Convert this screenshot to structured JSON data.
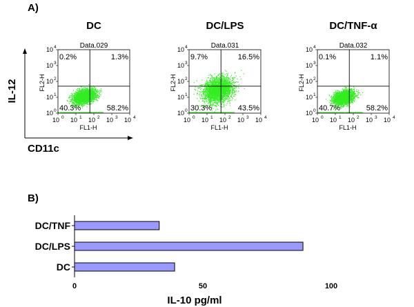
{
  "figure": {
    "panel_a_label": "A)",
    "panel_b_label": "B)",
    "y_arrow_label": "IL-12",
    "x_arrow_label": "CD11c"
  },
  "chart_data": [
    {
      "type": "scatter",
      "title": "DC",
      "file": "Data.029",
      "xlabel": "FL1-H",
      "ylabel": "FL2-H",
      "scale": "log",
      "xlim": [
        1,
        10000
      ],
      "ylim": [
        1,
        10000
      ],
      "ticks": [
        "10",
        "10",
        "10",
        "10",
        "10"
      ],
      "tick_exponents": [
        "0",
        "1",
        "2",
        "3",
        "4"
      ],
      "quadrants": {
        "top_left": "0.2%",
        "top_right": "1.3%",
        "bottom_left": "40.3%",
        "bottom_right": "58.2%"
      },
      "gate": {
        "x": 60,
        "y": 50
      },
      "cloud": {
        "center_x": 30,
        "center_y": 12,
        "spread_x": 0.55,
        "spread_y": 0.35
      },
      "dot_color": "#33ee22"
    },
    {
      "type": "scatter",
      "title": "DC/LPS",
      "file": "Data.031",
      "xlabel": "FL1-H",
      "ylabel": "FL2-H",
      "scale": "log",
      "xlim": [
        1,
        10000
      ],
      "ylim": [
        1,
        10000
      ],
      "ticks": [
        "10",
        "10",
        "10",
        "10",
        "10"
      ],
      "tick_exponents": [
        "0",
        "1",
        "2",
        "3",
        "4"
      ],
      "quadrants": {
        "top_left": "9.7%",
        "top_right": "16.5%",
        "bottom_left": "30.3%",
        "bottom_right": "43.5%"
      },
      "gate": {
        "x": 60,
        "y": 50
      },
      "cloud": {
        "center_x": 40,
        "center_y": 30,
        "spread_x": 0.75,
        "spread_y": 0.65
      },
      "dot_color": "#33ee22"
    },
    {
      "type": "scatter",
      "title": "DC/TNF-α",
      "file": "Data.032",
      "xlabel": "FL1-H",
      "ylabel": "FL2-H",
      "scale": "log",
      "xlim": [
        1,
        10000
      ],
      "ylim": [
        1,
        10000
      ],
      "ticks": [
        "10",
        "10",
        "10",
        "10",
        "10"
      ],
      "tick_exponents": [
        "0",
        "1",
        "2",
        "3",
        "4"
      ],
      "quadrants": {
        "top_left": "0.1%",
        "top_right": "1.1%",
        "bottom_left": "40.7%",
        "bottom_right": "58.2%"
      },
      "gate": {
        "x": 60,
        "y": 50
      },
      "cloud": {
        "center_x": 28,
        "center_y": 10,
        "spread_x": 0.5,
        "spread_y": 0.33
      },
      "dot_color": "#33ee22"
    },
    {
      "type": "bar",
      "orientation": "horizontal",
      "categories": [
        "DC/TNF",
        "DC/LPS",
        "DC"
      ],
      "values": [
        33,
        89,
        39
      ],
      "xlabel": "IL-10 pg/ml",
      "xlim": [
        0,
        100
      ],
      "xticks": [
        "0",
        "50",
        "100"
      ],
      "bar_color": "#9999ff"
    }
  ]
}
